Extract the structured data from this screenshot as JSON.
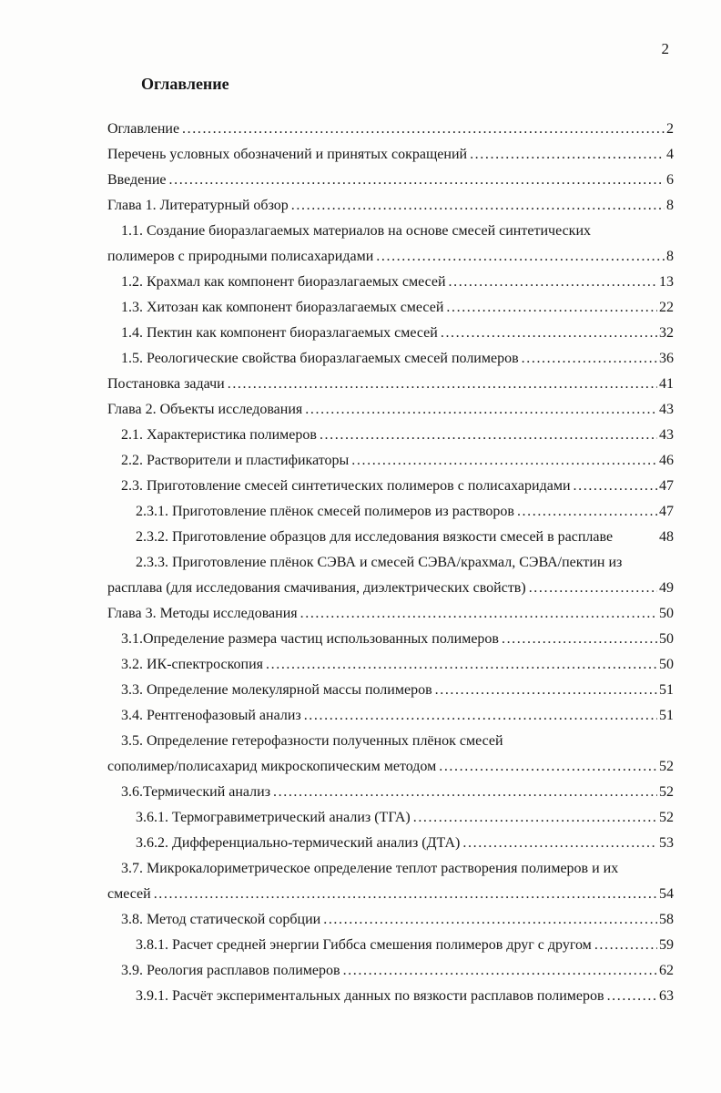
{
  "page": {
    "number": "2",
    "heading": "Оглавление"
  },
  "colors": {
    "ink": "#161616",
    "paper": "#fdfdfc"
  },
  "toc": {
    "entries": [
      {
        "level": 0,
        "lines": [
          "Оглавление"
        ],
        "page": "2"
      },
      {
        "level": 0,
        "lines": [
          "Перечень условных обозначений и принятых сокращений"
        ],
        "page": "4"
      },
      {
        "level": 0,
        "lines": [
          "Введение"
        ],
        "page": "6"
      },
      {
        "level": 0,
        "lines": [
          "Глава 1. Литературный обзор"
        ],
        "page": "8"
      },
      {
        "level": 1,
        "lines": [
          "1.1. Создание биоразлагаемых материалов на основе смесей синтетических",
          "полимеров с природными полисахаридами"
        ],
        "page": "8"
      },
      {
        "level": 1,
        "lines": [
          "1.2. Крахмал как компонент биоразлагаемых смесей"
        ],
        "page": "13"
      },
      {
        "level": 1,
        "lines": [
          "1.3. Хитозан как компонент биоразлагаемых смесей"
        ],
        "page": "22"
      },
      {
        "level": 1,
        "lines": [
          "1.4. Пектин как компонент биоразлагаемых смесей"
        ],
        "page": "32"
      },
      {
        "level": 1,
        "lines": [
          "1.5. Реологические свойства биоразлагаемых смесей полимеров"
        ],
        "page": "36"
      },
      {
        "level": 0,
        "lines": [
          "Постановка задачи"
        ],
        "page": "41"
      },
      {
        "level": 0,
        "lines": [
          "Глава 2. Объекты исследования"
        ],
        "page": "43"
      },
      {
        "level": 1,
        "lines": [
          "2.1. Характеристика полимеров"
        ],
        "page": "43"
      },
      {
        "level": 1,
        "lines": [
          "2.2. Растворители и пластификаторы"
        ],
        "page": "46"
      },
      {
        "level": 1,
        "lines": [
          "2.3. Приготовление смесей синтетических полимеров с полисахаридами"
        ],
        "page": "47"
      },
      {
        "level": 2,
        "lines": [
          "2.3.1. Приготовление плёнок смесей полимеров из растворов"
        ],
        "page": "47"
      },
      {
        "level": 2,
        "lines": [
          "2.3.2. Приготовление образцов для исследования вязкости смесей в расплаве"
        ],
        "page": "48",
        "no_leader": true
      },
      {
        "level": 2,
        "lines": [
          "2.3.3. Приготовление плёнок СЭВА и смесей СЭВА/крахмал, СЭВА/пектин из",
          "расплава (для исследования смачивания, диэлектрических свойств)"
        ],
        "page": "49"
      },
      {
        "level": 0,
        "lines": [
          "Глава 3. Методы исследования"
        ],
        "page": "50"
      },
      {
        "level": 1,
        "lines": [
          "3.1.Определение размера частиц использованных полимеров"
        ],
        "page": "50"
      },
      {
        "level": 1,
        "lines": [
          "3.2. ИК-спектроскопия"
        ],
        "page": "50"
      },
      {
        "level": 1,
        "lines": [
          "3.3. Определение молекулярной массы полимеров"
        ],
        "page": "51"
      },
      {
        "level": 1,
        "lines": [
          "3.4. Рентгенофазовый анализ"
        ],
        "page": "51"
      },
      {
        "level": 1,
        "lines": [
          "3.5. Определение гетерофазности полученных плёнок смесей",
          "сополимер/полисахарид микроскопическим методом"
        ],
        "page": "52"
      },
      {
        "level": 1,
        "lines": [
          "3.6.Термический анализ"
        ],
        "page": "52"
      },
      {
        "level": 2,
        "lines": [
          "3.6.1. Термогравиметрический анализ (ТГА)"
        ],
        "page": "52"
      },
      {
        "level": 2,
        "lines": [
          "3.6.2. Дифференциально-термический анализ (ДТА)"
        ],
        "page": "53"
      },
      {
        "level": 1,
        "lines": [
          "3.7. Микрокалориметрическое определение теплот растворения полимеров и их",
          "смесей"
        ],
        "page": "54"
      },
      {
        "level": 1,
        "lines": [
          "3.8. Метод статической сорбции"
        ],
        "page": "58"
      },
      {
        "level": 2,
        "lines": [
          "3.8.1. Расчет средней энергии Гиббса смешения полимеров друг с другом"
        ],
        "page": "59"
      },
      {
        "level": 1,
        "lines": [
          "3.9. Реология расплавов полимеров"
        ],
        "page": "62"
      },
      {
        "level": 2,
        "lines": [
          "3.9.1. Расчёт экспериментальных данных по вязкости расплавов полимеров"
        ],
        "page": "63"
      }
    ]
  }
}
